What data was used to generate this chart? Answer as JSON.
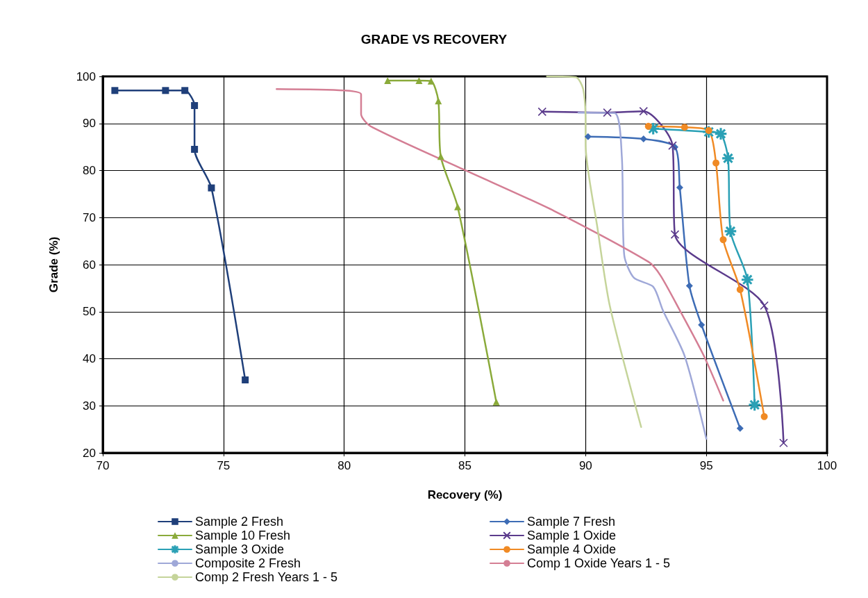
{
  "chart_data": {
    "type": "line",
    "title": "GRADE VS RECOVERY",
    "xlabel": "Recovery (%)",
    "ylabel": "Grade (%)",
    "xlim": [
      70,
      100
    ],
    "xticks": [
      70,
      75,
      80,
      85,
      90,
      95,
      100
    ],
    "ylim": [
      20,
      100
    ],
    "yticks": [
      20,
      30,
      40,
      50,
      60,
      70,
      80,
      90,
      100
    ],
    "grid": true,
    "legend": "bottom",
    "line_style": "solid",
    "series": [
      {
        "name": "Sample 2 Fresh",
        "color": "#1f3f7a",
        "marker": "square",
        "x": [
          70.5,
          72.6,
          73.4,
          73.8,
          73.8,
          74.5,
          75.9
        ],
        "values": [
          97.0,
          97.0,
          97.0,
          93.8,
          84.5,
          76.3,
          35.5
        ]
      },
      {
        "name": "Sample 7 Fresh",
        "color": "#3d6cb5",
        "marker": "diamond",
        "x": [
          90.1,
          92.4,
          93.7,
          93.9,
          94.3,
          94.8,
          96.4
        ],
        "values": [
          87.2,
          86.7,
          85.0,
          76.4,
          55.5,
          47.2,
          25.2
        ]
      },
      {
        "name": "Sample 10 Fresh",
        "color": "#8aaa3a",
        "marker": "triangle",
        "x": [
          81.8,
          83.1,
          83.6,
          83.9,
          84.0,
          84.7,
          86.3
        ],
        "values": [
          99.1,
          99.1,
          99.0,
          94.8,
          83.0,
          72.3,
          30.8
        ]
      },
      {
        "name": "Sample 1 Oxide",
        "color": "#5b3b8c",
        "marker": "cross",
        "x": [
          88.2,
          90.9,
          92.4,
          93.6,
          93.7,
          97.4,
          98.2
        ],
        "values": [
          92.5,
          92.3,
          92.6,
          85.3,
          66.4,
          51.3,
          22.1
        ]
      },
      {
        "name": "Sample 3 Oxide",
        "color": "#2aa0b5",
        "marker": "star",
        "x": [
          92.8,
          95.1,
          95.6,
          95.9,
          96.0,
          96.7,
          97.0
        ],
        "values": [
          88.9,
          88.2,
          87.8,
          82.6,
          67.1,
          56.8,
          30.2
        ]
      },
      {
        "name": "Sample 4 Oxide",
        "color": "#f08a24",
        "marker": "circle",
        "x": [
          92.6,
          94.1,
          95.1,
          95.4,
          95.7,
          96.4,
          97.4
        ],
        "values": [
          89.4,
          89.2,
          88.5,
          81.6,
          65.3,
          54.7,
          27.7
        ]
      },
      {
        "name": "Composite 2 Fresh",
        "color": "#9fa8d8",
        "marker": "none",
        "x": [
          89.7,
          91.2,
          91.5,
          91.6,
          92.0,
          92.8,
          93.2,
          94.1,
          95.0
        ],
        "values": [
          92.3,
          92.2,
          83.0,
          62.0,
          57.2,
          55.3,
          50.3,
          40.6,
          23.0
        ]
      },
      {
        "name": "Comp 1 Oxide Years 1 - 5",
        "color": "#d47e94",
        "marker": "none",
        "x": [
          77.2,
          80.0,
          80.7,
          80.7,
          81.1,
          85.0,
          88.7,
          92.6,
          93.1,
          93.9,
          94.9,
          95.7
        ],
        "values": [
          97.3,
          97.0,
          96.2,
          92.0,
          89.4,
          80.1,
          71.4,
          60.6,
          57.7,
          50.3,
          40.6,
          31.1
        ]
      },
      {
        "name": "Comp 2 Fresh Years 1 - 5",
        "color": "#c5d49a",
        "marker": "none",
        "x": [
          88.4,
          89.6,
          89.9,
          90.0,
          90.0,
          90.5,
          91.0,
          92.3
        ],
        "values": [
          100.0,
          99.8,
          97.3,
          90.0,
          85.7,
          67.5,
          51.3,
          25.5
        ]
      }
    ]
  }
}
